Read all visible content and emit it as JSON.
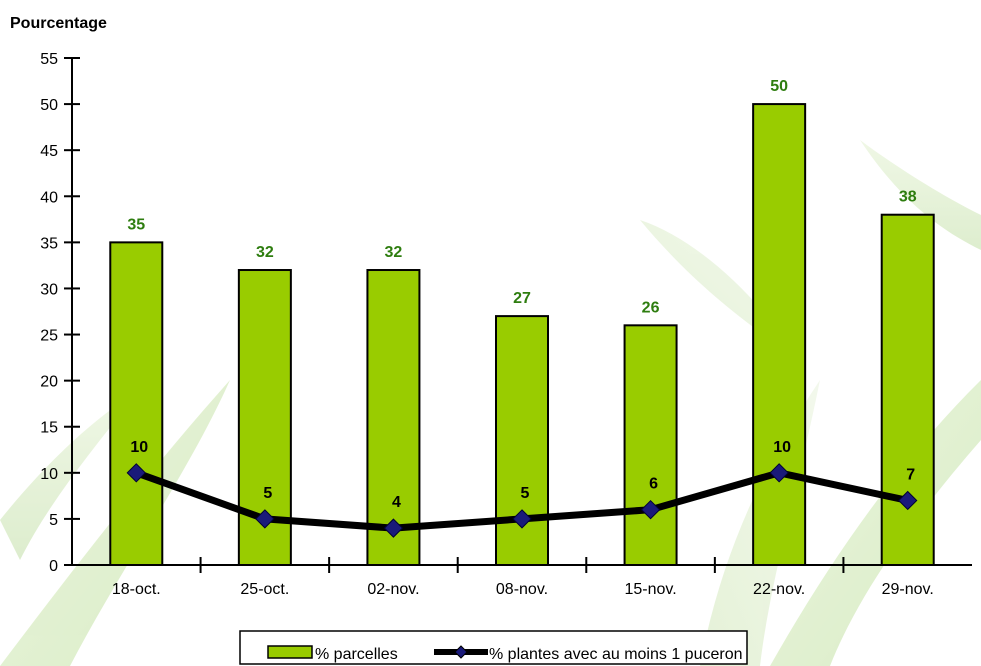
{
  "chart_data": {
    "type": "bar",
    "ylabel": "Pourcentage",
    "ylim": [
      0,
      55
    ],
    "yticks": [
      0,
      5,
      10,
      15,
      20,
      25,
      30,
      35,
      40,
      45,
      50,
      55
    ],
    "categories": [
      "18-oct.",
      "25-oct.",
      "02-nov.",
      "08-nov.",
      "15-nov.",
      "22-nov.",
      "29-nov."
    ],
    "series": [
      {
        "name": "% parcelles",
        "type": "bar",
        "color": "#99cc00",
        "label_color": "#2e7d0f",
        "values": [
          35,
          32,
          32,
          27,
          26,
          50,
          38
        ]
      },
      {
        "name": "% plantes avec au moins 1 puceron",
        "type": "line",
        "color": "#000000",
        "marker_color": "#1a1a7a",
        "marker": "diamond",
        "values": [
          10,
          5,
          4,
          5,
          6,
          10,
          7
        ]
      }
    ],
    "legend_position": "bottom",
    "grid": false
  }
}
